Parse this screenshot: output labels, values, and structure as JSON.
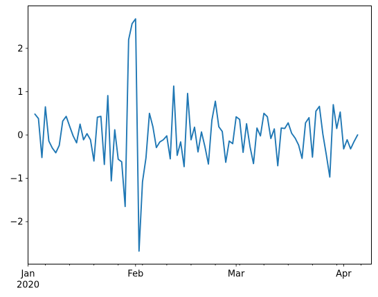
{
  "chart_data": {
    "type": "line",
    "title": "",
    "xlabel": "",
    "ylabel": "",
    "grid": false,
    "legend": "none",
    "series_color": "#1f77b4",
    "x_start": "2020-01-03",
    "x_step": "1D",
    "xlim": [
      "2020-01-01",
      "2020-04-09"
    ],
    "ylim": [
      -2.98,
      2.98
    ],
    "x_major_ticks": [
      {
        "date": "2020-01-01",
        "label": "Jan",
        "sublabel": "2020"
      },
      {
        "date": "2020-02-01",
        "label": "Feb",
        "sublabel": ""
      },
      {
        "date": "2020-03-01",
        "label": "Mar",
        "sublabel": ""
      },
      {
        "date": "2020-04-01",
        "label": "Apr",
        "sublabel": ""
      }
    ],
    "x_minor_ticks": [
      "2020-01-06",
      "2020-01-13",
      "2020-01-20",
      "2020-01-27",
      "2020-02-03",
      "2020-02-10",
      "2020-02-17",
      "2020-02-24",
      "2020-03-02",
      "2020-03-09",
      "2020-03-16",
      "2020-03-23",
      "2020-03-30",
      "2020-04-06"
    ],
    "y_ticks": [
      {
        "value": 2,
        "label": "2"
      },
      {
        "value": 1,
        "label": "1"
      },
      {
        "value": 0,
        "label": "0"
      },
      {
        "value": -1,
        "label": "−1"
      },
      {
        "value": -2,
        "label": "−2"
      }
    ],
    "values": [
      0.48,
      0.38,
      -0.52,
      0.65,
      -0.14,
      -0.3,
      -0.41,
      -0.24,
      0.32,
      0.43,
      0.2,
      -0.02,
      -0.18,
      0.25,
      -0.11,
      0.03,
      -0.11,
      -0.6,
      0.41,
      0.43,
      -0.68,
      0.91,
      -1.06,
      0.12,
      -0.56,
      -0.62,
      -1.65,
      2.2,
      2.57,
      2.68,
      -2.68,
      -1.08,
      -0.53,
      0.5,
      0.19,
      -0.29,
      -0.16,
      -0.11,
      -0.02,
      -0.55,
      1.13,
      -0.47,
      -0.16,
      -0.73,
      0.96,
      -0.11,
      0.18,
      -0.39,
      0.07,
      -0.27,
      -0.67,
      0.34,
      0.78,
      0.19,
      0.08,
      -0.63,
      -0.14,
      -0.2,
      0.42,
      0.36,
      -0.4,
      0.26,
      -0.27,
      -0.66,
      0.16,
      -0.02,
      0.5,
      0.42,
      -0.08,
      0.14,
      -0.71,
      0.16,
      0.15,
      0.28,
      0.04,
      -0.07,
      -0.23,
      -0.54,
      0.28,
      0.4,
      -0.51,
      0.55,
      0.66,
      0.02,
      -0.46,
      -0.97,
      0.7,
      0.15,
      0.53,
      -0.32,
      -0.11,
      -0.32,
      -0.15,
      0.0
    ]
  }
}
